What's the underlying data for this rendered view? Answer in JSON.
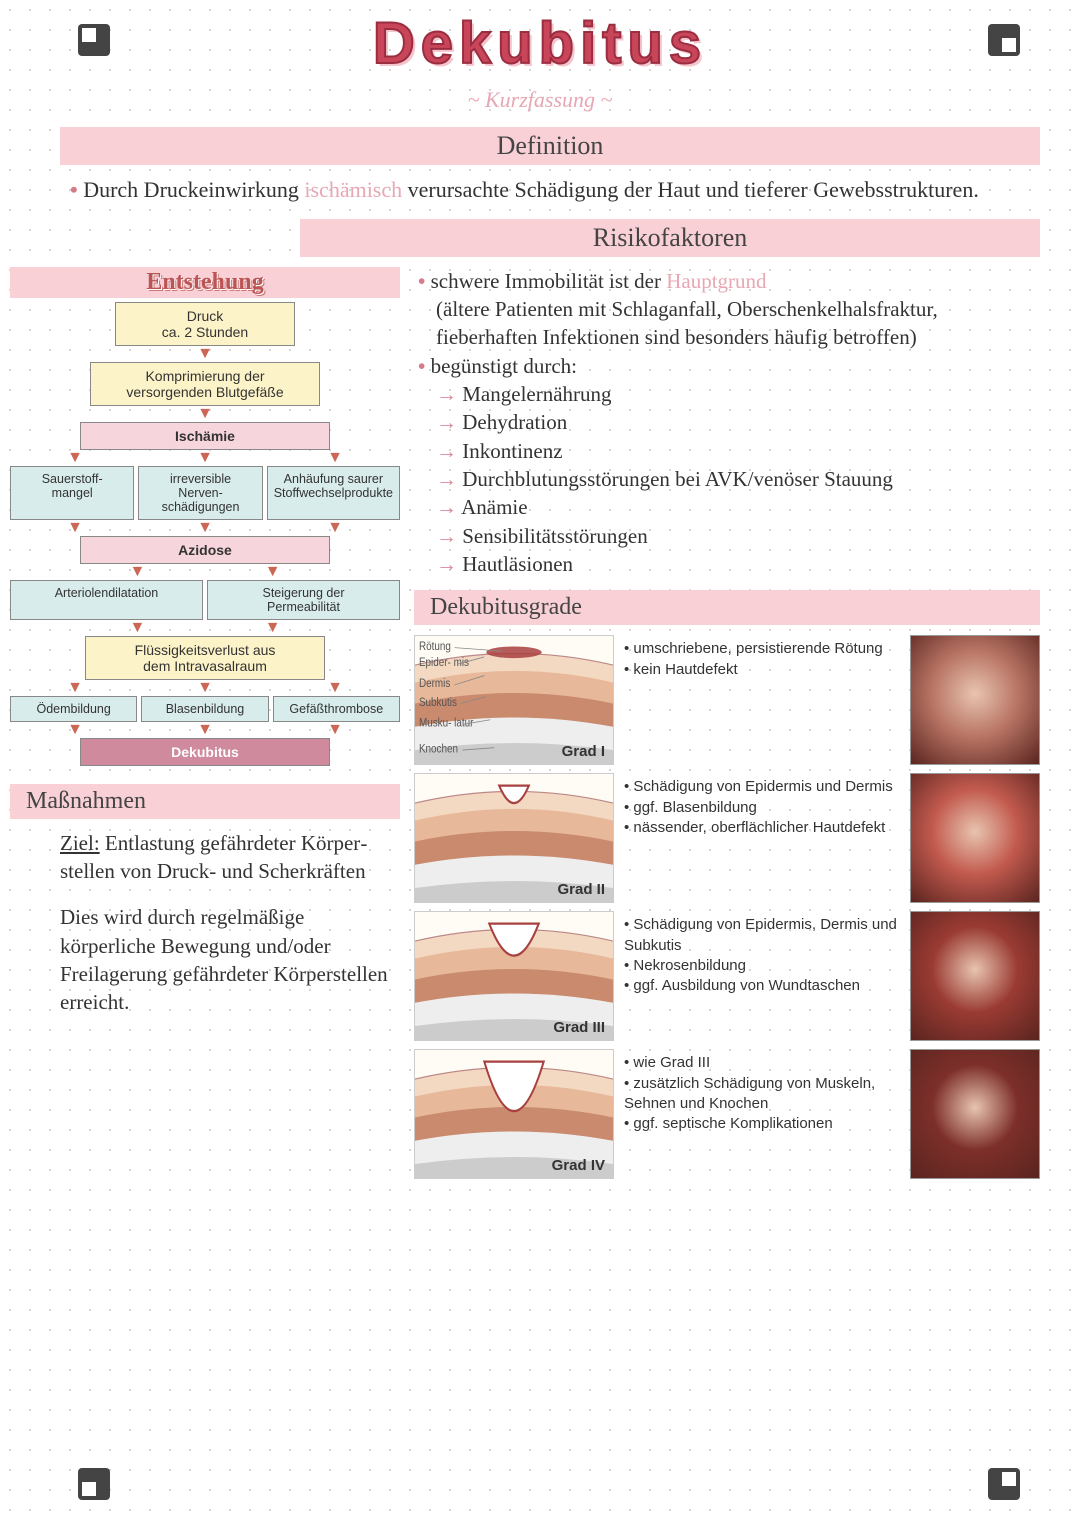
{
  "title": "Dekubitus",
  "subtitle": "~ Kurzfassung ~",
  "sections": {
    "definition": "Definition",
    "risiko": "Risikofaktoren",
    "entstehung": "Entstehung",
    "grade": "Dekubitusgrade",
    "massnahmen": "Maßnahmen"
  },
  "definition_text_pre": "Durch Druckeinwirkung ",
  "definition_text_mid": "ischämisch",
  "definition_text_post": " verursachte Schädigung der Haut und tieferer Gewebsstrukturen.",
  "risiko": {
    "line1_pre": "schwere Immobilität ist der ",
    "line1_pink": "Hauptgrund",
    "line2": "(ältere Patienten mit Schlaganfall, Oberschenkel­halsfraktur, fieberhaften Infektionen sind besonders häufig betroffen)",
    "line3": "begünstigt durch:",
    "items": [
      "Mangelernährung",
      "Dehydration",
      "Inkontinenz",
      "Durchblutungsstörungen bei AVK/venöser Stauung",
      "Anämie",
      "Sensibilitätsstörungen",
      "Hautläsionen"
    ]
  },
  "flow": {
    "b1": "Druck\nca. 2 Stunden",
    "b2": "Komprimierung der\nversorgenden Blutgefäße",
    "b3": "Ischämie",
    "r1": [
      "Sauerstoff-\nmangel",
      "irreversible\nNerven-\nschädigungen",
      "Anhäufung saurer\nStoffwechselprodukte"
    ],
    "b4": "Azidose",
    "r2": [
      "Arteriolendilatation",
      "Steigerung der\nPermeabilität"
    ],
    "b5": "Flüssigkeitsverlust aus\ndem Intravasalraum",
    "r3": [
      "Ödembildung",
      "Blasenbildung",
      "Gefäßthrombose"
    ],
    "b6": "Dekubitus"
  },
  "skin_labels": [
    "Rötung",
    "Epider-\nmis",
    "Dermis",
    "Subkutis",
    "Musku-\nlatur",
    "Knochen"
  ],
  "grades": [
    {
      "label": "Grad I",
      "desc": [
        "umschriebene, persistierende Rötung",
        "kein Hautdefekt"
      ],
      "photo_color": "#b97565",
      "depth": 0
    },
    {
      "label": "Grad II",
      "desc": [
        "Schädigung von Epidermis und Dermis",
        "ggf. Blasenbildung",
        "nässender, oberflächlicher Hautdefekt"
      ],
      "photo_color": "#c25a4e",
      "depth": 1
    },
    {
      "label": "Grad III",
      "desc": [
        "Schädigung von Epidermis, Dermis und Subkutis",
        "Nekrosenbildung",
        "ggf. Ausbildung von Wundtaschen"
      ],
      "photo_color": "#9a3b33",
      "depth": 2
    },
    {
      "label": "Grad IV",
      "desc": [
        "wie Grad III",
        "zusätzlich Schädigung von Muskeln, Sehnen und Knochen",
        "ggf. septische Komplikationen"
      ],
      "photo_color": "#7d2f2a",
      "depth": 3
    }
  ],
  "colors": {
    "epidermis": "#f4d9c2",
    "dermis": "#e8b89a",
    "subkutis": "#c98a6e",
    "muskel": "#eeeeee",
    "knochen": "#cccccc",
    "wound": "#a84040"
  },
  "massnahmen": {
    "ziel_label": "Ziel:",
    "ziel": "Entlastung ge­fährdeter Körper­stellen von Druck- und Scherkräften",
    "text": "Dies wird durch regel­mäßige körperliche Bewe­gung und/oder Freilager­ung gefährdeter Körper­stellen erreicht."
  }
}
